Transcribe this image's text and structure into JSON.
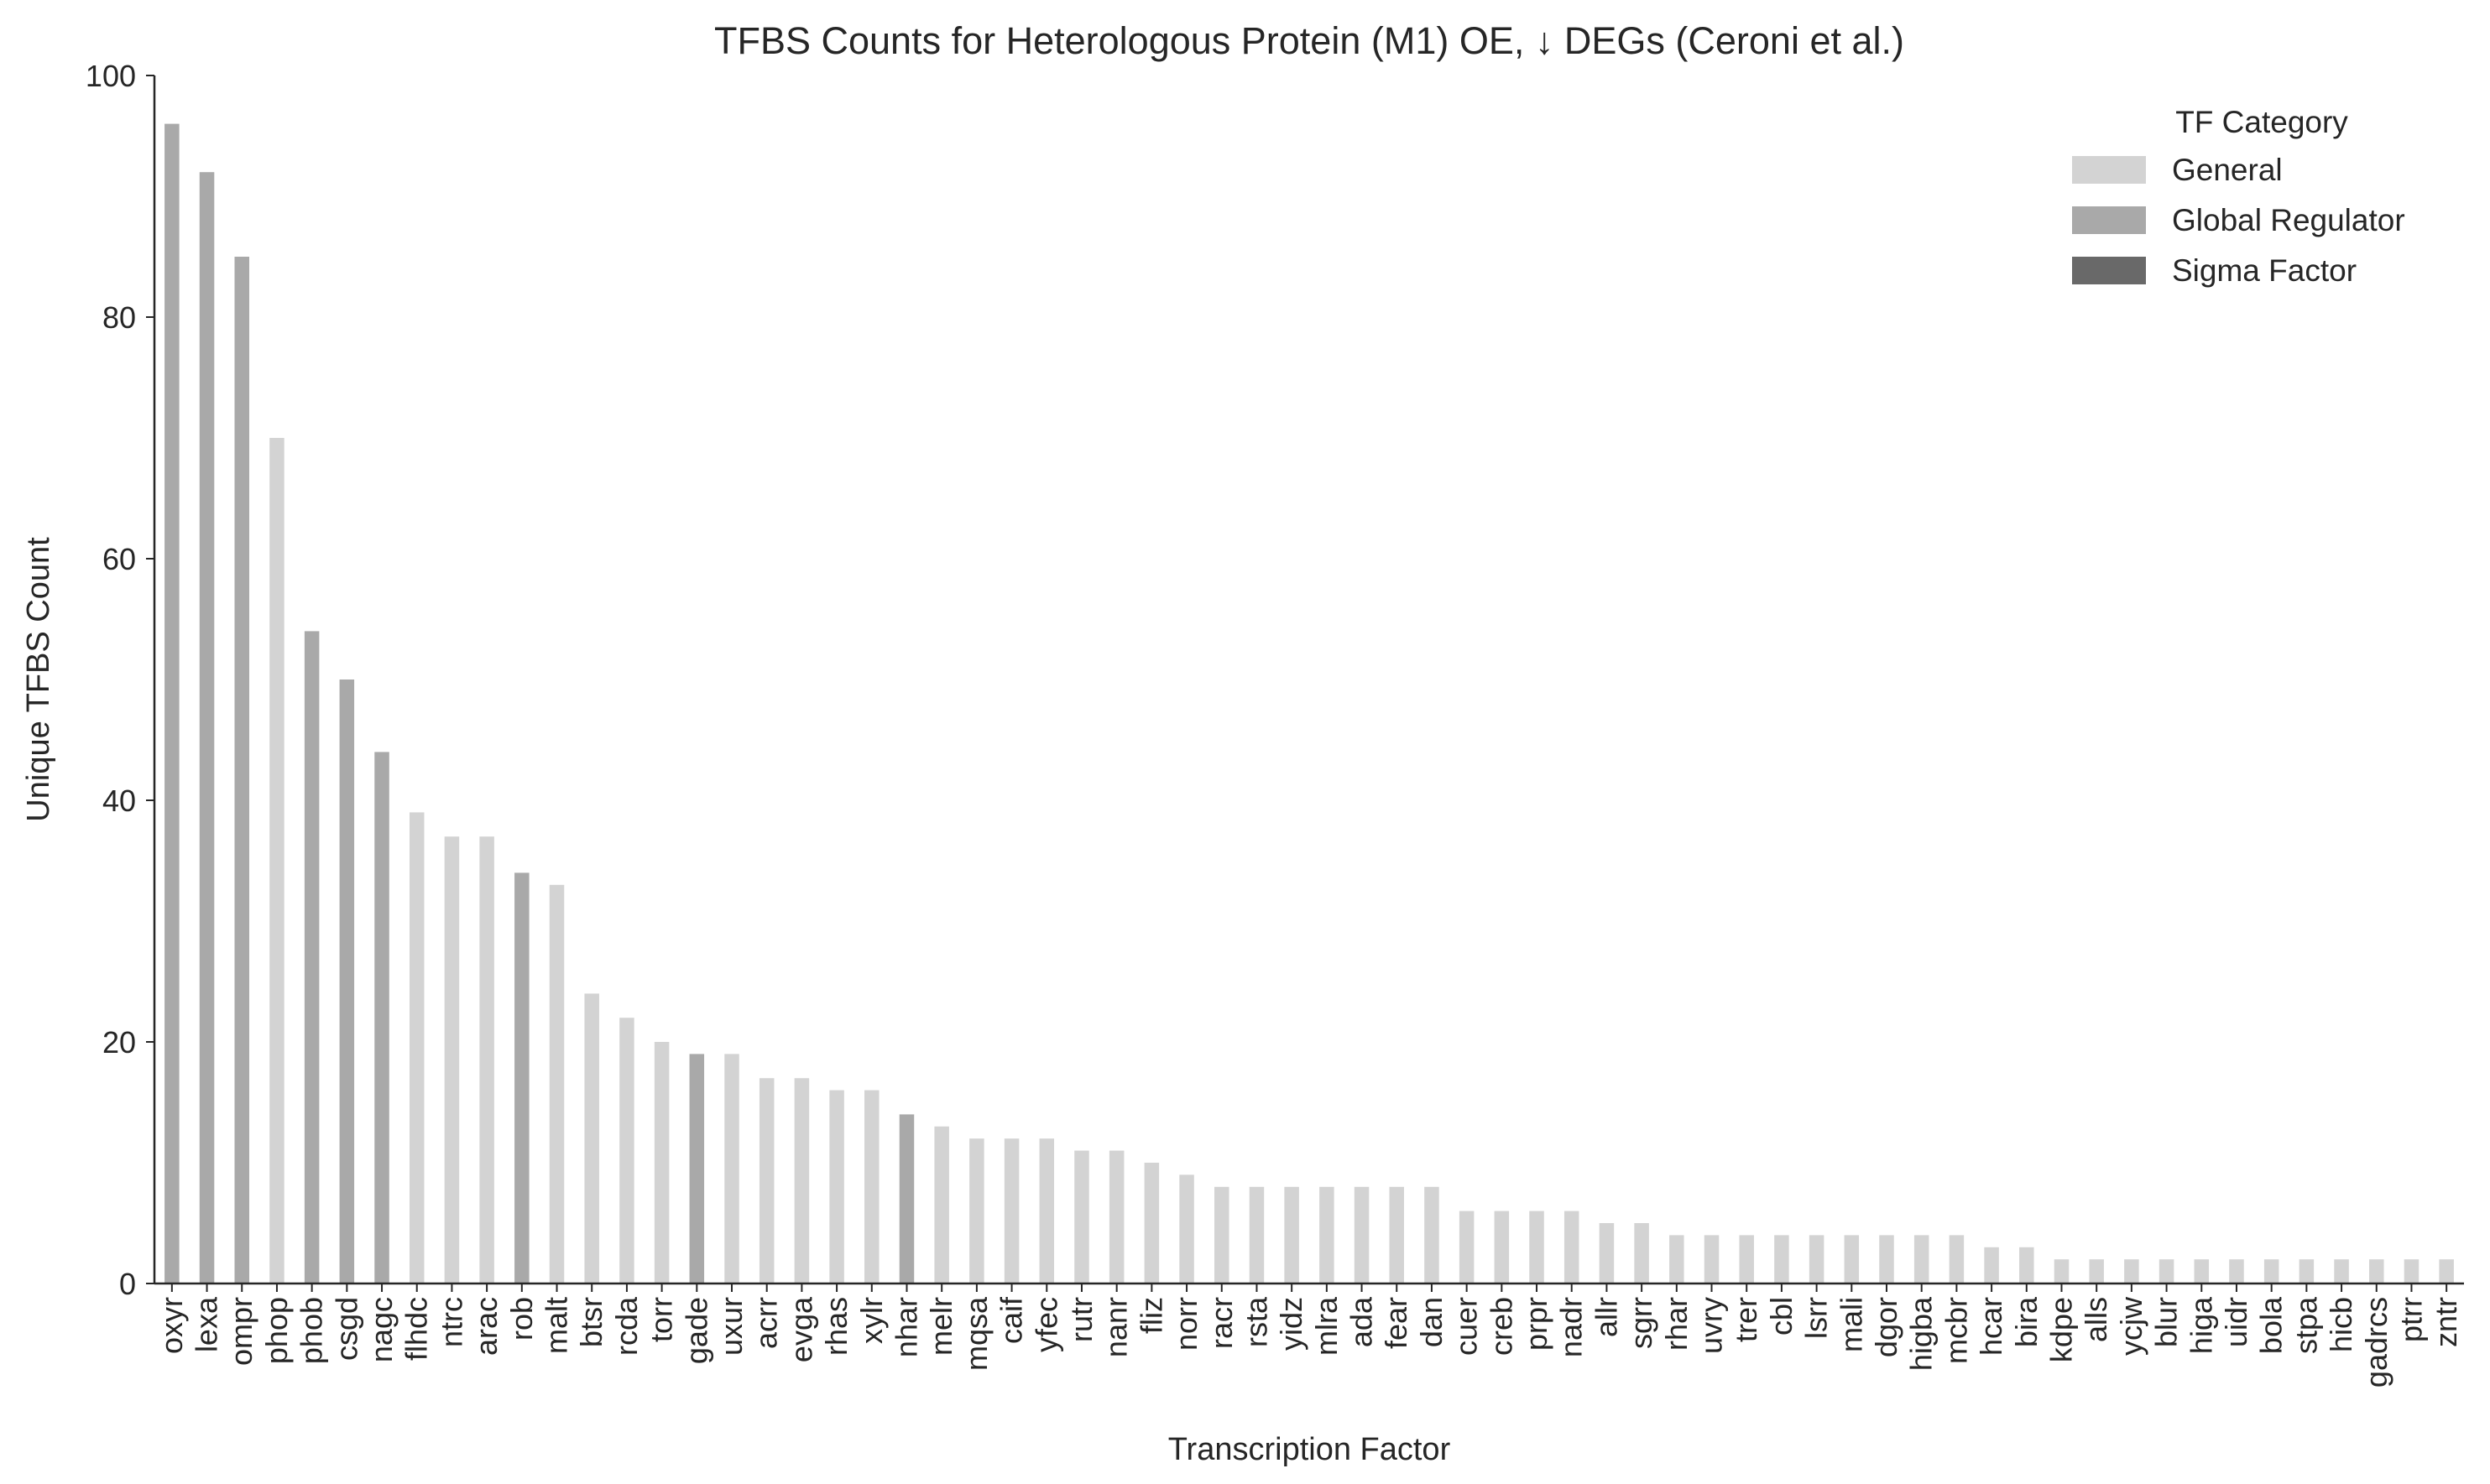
{
  "chart_data": {
    "type": "bar",
    "title": "TFBS Counts for Heterologous Protein (M1) OE, ↓ DEGs (Ceroni et al.)",
    "xlabel": "Transcription Factor",
    "ylabel": "Unique TFBS Count",
    "ylim": [
      0,
      100
    ],
    "yticks": [
      0,
      20,
      40,
      60,
      80,
      100
    ],
    "grid": false,
    "legend": {
      "title": "TF Category",
      "placement": "top-right",
      "entries": [
        {
          "label": "General",
          "color": "#d3d3d3"
        },
        {
          "label": "Global Regulator",
          "color": "#a9a9a9"
        },
        {
          "label": "Sigma Factor",
          "color": "#696969"
        }
      ]
    },
    "categories": [
      "oxyr",
      "lexa",
      "ompr",
      "phop",
      "phob",
      "csgd",
      "nagc",
      "flhdc",
      "ntrc",
      "arac",
      "rob",
      "malt",
      "btsr",
      "rcda",
      "torr",
      "gade",
      "uxur",
      "acrr",
      "evga",
      "rhas",
      "xylr",
      "nhar",
      "melr",
      "mqsa",
      "caif",
      "yfec",
      "rutr",
      "nanr",
      "fliz",
      "norr",
      "racr",
      "rsta",
      "yidz",
      "mlra",
      "ada",
      "fear",
      "dan",
      "cuer",
      "creb",
      "prpr",
      "nadr",
      "allr",
      "sgrr",
      "rhar",
      "uvry",
      "trer",
      "cbl",
      "lsrr",
      "mali",
      "dgor",
      "higba",
      "mcbr",
      "hcar",
      "bira",
      "kdpe",
      "alls",
      "ycjw",
      "blur",
      "higa",
      "uidr",
      "bola",
      "stpa",
      "hicb",
      "gadrcs",
      "ptrr",
      "zntr"
    ],
    "values": [
      96,
      92,
      85,
      70,
      54,
      50,
      44,
      39,
      37,
      37,
      34,
      33,
      24,
      22,
      20,
      19,
      19,
      17,
      17,
      16,
      16,
      14,
      13,
      12,
      12,
      12,
      11,
      11,
      10,
      9,
      8,
      8,
      8,
      8,
      8,
      8,
      8,
      6,
      6,
      6,
      6,
      5,
      5,
      4,
      4,
      4,
      4,
      4,
      4,
      4,
      4,
      4,
      3,
      3,
      2,
      2,
      2,
      2,
      2,
      2,
      2,
      2,
      2,
      2,
      2,
      2
    ],
    "tf_category": [
      "Global Regulator",
      "Global Regulator",
      "Global Regulator",
      "General",
      "Global Regulator",
      "Global Regulator",
      "Global Regulator",
      "General",
      "General",
      "General",
      "Global Regulator",
      "General",
      "General",
      "General",
      "General",
      "Global Regulator",
      "General",
      "General",
      "General",
      "General",
      "General",
      "Global Regulator",
      "General",
      "General",
      "General",
      "General",
      "General",
      "General",
      "General",
      "General",
      "General",
      "General",
      "General",
      "General",
      "General",
      "General",
      "General",
      "General",
      "General",
      "General",
      "General",
      "General",
      "General",
      "General",
      "General",
      "General",
      "General",
      "General",
      "General",
      "General",
      "General",
      "General",
      "General",
      "General",
      "General",
      "General",
      "General",
      "General",
      "General",
      "General",
      "General",
      "General",
      "General",
      "General",
      "General",
      "General"
    ]
  }
}
